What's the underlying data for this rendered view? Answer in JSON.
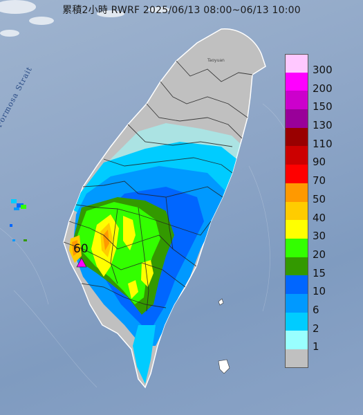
{
  "title": "累積2小時 RWRF 2025/06/13 08:00~06/13 10:00",
  "strait_label": "Formosa Strait",
  "city_label": "Taoyuan",
  "max_value_label": "60",
  "legend": {
    "items": [
      {
        "label": "300",
        "color": "#ffc8ff"
      },
      {
        "label": "200",
        "color": "#ff00ff"
      },
      {
        "label": "150",
        "color": "#cc00cc"
      },
      {
        "label": "130",
        "color": "#990099"
      },
      {
        "label": "110",
        "color": "#990000"
      },
      {
        "label": "90",
        "color": "#cc0000"
      },
      {
        "label": "70",
        "color": "#ff0000"
      },
      {
        "label": "50",
        "color": "#ff9900"
      },
      {
        "label": "40",
        "color": "#ffcc00"
      },
      {
        "label": "30",
        "color": "#ffff00"
      },
      {
        "label": "20",
        "color": "#33ff00"
      },
      {
        "label": "15",
        "color": "#339900"
      },
      {
        "label": "10",
        "color": "#0066ff"
      },
      {
        "label": "6",
        "color": "#0099ff"
      },
      {
        "label": "2",
        "color": "#00ccff"
      },
      {
        "label": "1",
        "color": "#99ffff"
      },
      {
        "label": "",
        "color": "#c0c0c0"
      }
    ]
  },
  "colors": {
    "sea": "#8ea6c7",
    "land_no_rain": "#c0c0c0",
    "max_marker": "#ff00ff"
  }
}
